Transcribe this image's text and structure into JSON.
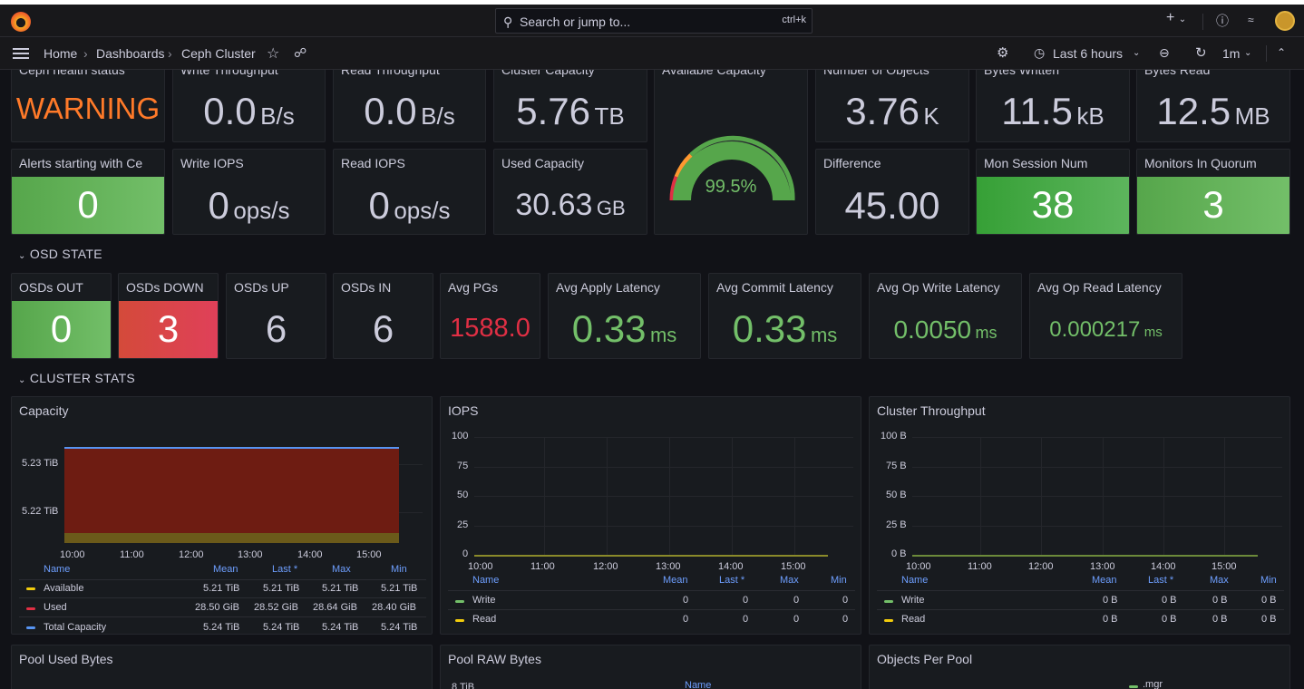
{
  "topbar": {
    "search_placeholder": "Search or jump to...",
    "search_shortcut": "ctrl+k",
    "plus_label": "+",
    "help_icon": "help-icon",
    "news_icon": "rss-icon"
  },
  "nav": {
    "breadcrumb": [
      "Home",
      "Dashboards",
      "Ceph Cluster"
    ],
    "time_range": "Last 6 hours",
    "refresh_interval": "1m"
  },
  "row1": [
    {
      "title": "Ceph health status",
      "value": "WARNING",
      "unit": "",
      "color": "#ff7a29"
    },
    {
      "title": "Write Throughput",
      "value": "0.0",
      "unit": "B/s"
    },
    {
      "title": "Read Throughput",
      "value": "0.0",
      "unit": "B/s"
    },
    {
      "title": "Cluster Capacity",
      "value": "5.76",
      "unit": "TB"
    },
    {
      "title": "Available Capacity",
      "value": "99.5%",
      "gauge": 0.995
    },
    {
      "title": "Number of Objects",
      "value": "3.76",
      "unit": "K"
    },
    {
      "title": "Bytes Written",
      "value": "11.5",
      "unit": "kB"
    },
    {
      "title": "Bytes Read",
      "value": "12.5",
      "unit": "MB"
    }
  ],
  "row2": [
    {
      "title": "Alerts starting with Ce",
      "value": "0",
      "unit": ""
    },
    {
      "title": "Write IOPS",
      "value": "0",
      "unit": "ops/s"
    },
    {
      "title": "Read IOPS",
      "value": "0",
      "unit": "ops/s"
    },
    {
      "title": "Used Capacity",
      "value": "30.63",
      "unit": "GB"
    },
    {
      "title": "Difference",
      "value": "45.00",
      "unit": ""
    },
    {
      "title": "Mon Session Num",
      "value": "38",
      "unit": ""
    },
    {
      "title": "Monitors In Quorum",
      "value": "3",
      "unit": ""
    }
  ],
  "sections": {
    "osd_state": "OSD STATE",
    "cluster_stats": "CLUSTER STATS"
  },
  "osd": [
    {
      "title": "OSDs OUT",
      "value": "0",
      "unit": ""
    },
    {
      "title": "OSDs DOWN",
      "value": "3",
      "unit": ""
    },
    {
      "title": "OSDs UP",
      "value": "6",
      "unit": ""
    },
    {
      "title": "OSDs IN",
      "value": "6",
      "unit": ""
    },
    {
      "title": "Avg PGs",
      "value": "1588.0",
      "unit": ""
    },
    {
      "title": "Avg Apply Latency",
      "value": "0.33",
      "unit": "ms"
    },
    {
      "title": "Avg Commit Latency",
      "value": "0.33",
      "unit": "ms"
    },
    {
      "title": "Avg Op Write Latency",
      "value": "0.0050",
      "unit": "ms"
    },
    {
      "title": "Avg Op Read Latency",
      "value": "0.000217",
      "unit": "ms"
    }
  ],
  "capacity": {
    "title": "Capacity",
    "y_ticks": [
      "5.23 TiB",
      "5.22 TiB"
    ],
    "x_ticks": [
      "10:00",
      "11:00",
      "12:00",
      "13:00",
      "14:00",
      "15:00"
    ],
    "headers": [
      "Name",
      "Mean",
      "Last *",
      "Max",
      "Min"
    ],
    "rows": [
      {
        "name": "Available",
        "color": "#f2cc0c",
        "vals": [
          "5.21 TiB",
          "5.21 TiB",
          "5.21 TiB",
          "5.21 TiB"
        ]
      },
      {
        "name": "Used",
        "color": "#e02f44",
        "vals": [
          "28.50 GiB",
          "28.52 GiB",
          "28.64 GiB",
          "28.40 GiB"
        ]
      },
      {
        "name": "Total Capacity",
        "color": "#5794f2",
        "vals": [
          "5.24 TiB",
          "5.24 TiB",
          "5.24 TiB",
          "5.24 TiB"
        ]
      }
    ]
  },
  "iops": {
    "title": "IOPS",
    "y_ticks": [
      "100",
      "75",
      "50",
      "25",
      "0"
    ],
    "x_ticks": [
      "10:00",
      "11:00",
      "12:00",
      "13:00",
      "14:00",
      "15:00"
    ],
    "headers": [
      "Name",
      "Mean",
      "Last *",
      "Max",
      "Min"
    ],
    "rows": [
      {
        "name": "Write",
        "color": "#73bf69",
        "vals": [
          "0",
          "0",
          "0",
          "0"
        ]
      },
      {
        "name": "Read",
        "color": "#f2cc0c",
        "vals": [
          "0",
          "0",
          "0",
          "0"
        ]
      }
    ]
  },
  "throughput": {
    "title": "Cluster Throughput",
    "y_ticks": [
      "100 B",
      "75 B",
      "50 B",
      "25 B",
      "0 B"
    ],
    "x_ticks": [
      "10:00",
      "11:00",
      "12:00",
      "13:00",
      "14:00",
      "15:00"
    ],
    "headers": [
      "Name",
      "Mean",
      "Last *",
      "Max",
      "Min"
    ],
    "rows": [
      {
        "name": "Write",
        "color": "#73bf69",
        "vals": [
          "0 B",
          "0 B",
          "0 B",
          "0 B"
        ]
      },
      {
        "name": "Read",
        "color": "#f2cc0c",
        "vals": [
          "0 B",
          "0 B",
          "0 B",
          "0 B"
        ]
      }
    ]
  },
  "bottom": {
    "pool_used": "Pool Used Bytes",
    "pool_raw": "Pool RAW Bytes",
    "pool_raw_tick": "8 TiB",
    "pool_raw_name": "Name",
    "objects": "Objects Per Pool",
    "objects_legend": ".mgr"
  }
}
